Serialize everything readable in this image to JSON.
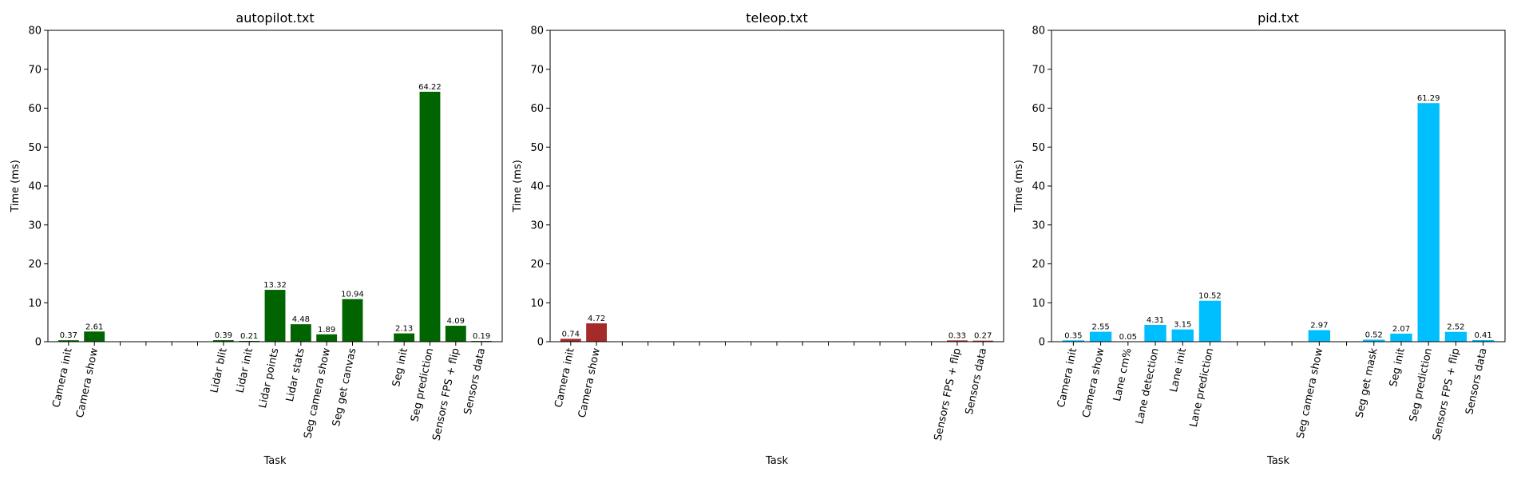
{
  "chart_data": [
    {
      "type": "bar",
      "title": "autopilot.txt",
      "xlabel": "Task",
      "ylabel": "Time (ms)",
      "ylim": [
        0,
        80
      ],
      "yticks": [
        0,
        10,
        20,
        30,
        40,
        50,
        60,
        70,
        80
      ],
      "color": "#006400",
      "categories": [
        "Camera init",
        "Camera show",
        "",
        "",
        "",
        "",
        "Lidar blit",
        "Lidar init",
        "Lidar points",
        "Lidar stats",
        "Seg camera show",
        "Seg get canvas",
        "",
        "Seg init",
        "Seg prediction",
        "Sensors FPS + flip",
        "Sensors data"
      ],
      "values": [
        0.37,
        2.61,
        0,
        0,
        0,
        0,
        0.39,
        0.21,
        13.32,
        4.48,
        1.89,
        10.94,
        0,
        2.13,
        64.22,
        4.09,
        0.19
      ],
      "value_labels": [
        "0.37",
        "2.61",
        "",
        "",
        "",
        "",
        "0.39",
        "0.21",
        "13.32",
        "4.48",
        "1.89",
        "10.94",
        "",
        "2.13",
        "64.22",
        "4.09",
        "0.19"
      ]
    },
    {
      "type": "bar",
      "title": "teleop.txt",
      "xlabel": "Task",
      "ylabel": "Time (ms)",
      "ylim": [
        0,
        80
      ],
      "yticks": [
        0,
        10,
        20,
        30,
        40,
        50,
        60,
        70,
        80
      ],
      "color": "#a52a2a",
      "categories": [
        "Camera init",
        "Camera show",
        "",
        "",
        "",
        "",
        "",
        "",
        "",
        "",
        "",
        "",
        "",
        "",
        "",
        "Sensors FPS + flip",
        "Sensors data"
      ],
      "values": [
        0.74,
        4.72,
        0,
        0,
        0,
        0,
        0,
        0,
        0,
        0,
        0,
        0,
        0,
        0,
        0,
        0.33,
        0.27
      ],
      "value_labels": [
        "0.74",
        "4.72",
        "",
        "",
        "",
        "",
        "",
        "",
        "",
        "",
        "",
        "",
        "",
        "",
        "",
        "0.33",
        "0.27"
      ]
    },
    {
      "type": "bar",
      "title": "pid.txt",
      "xlabel": "Task",
      "ylabel": "Time (ms)",
      "ylim": [
        0,
        80
      ],
      "yticks": [
        0,
        10,
        20,
        30,
        40,
        50,
        60,
        70,
        80
      ],
      "color": "#00bfff",
      "categories": [
        "Camera init",
        "Camera show",
        "Lane cm%",
        "Lane detection",
        "Lane init",
        "Lane prediction",
        "",
        "",
        "",
        "Seg camera show",
        "",
        "Seg get mask",
        "Seg init",
        "Seg prediction",
        "Sensors FPS + flip",
        "Sensors data"
      ],
      "values": [
        0.35,
        2.55,
        0.05,
        4.31,
        3.15,
        10.52,
        0,
        0,
        0,
        2.97,
        0,
        0.52,
        2.07,
        61.29,
        2.52,
        0.41
      ],
      "value_labels": [
        "0.35",
        "2.55",
        "0.05",
        "4.31",
        "3.15",
        "10.52",
        "",
        "",
        "",
        "2.97",
        "",
        "0.52",
        "2.07",
        "61.29",
        "2.52",
        "0.41"
      ]
    }
  ]
}
